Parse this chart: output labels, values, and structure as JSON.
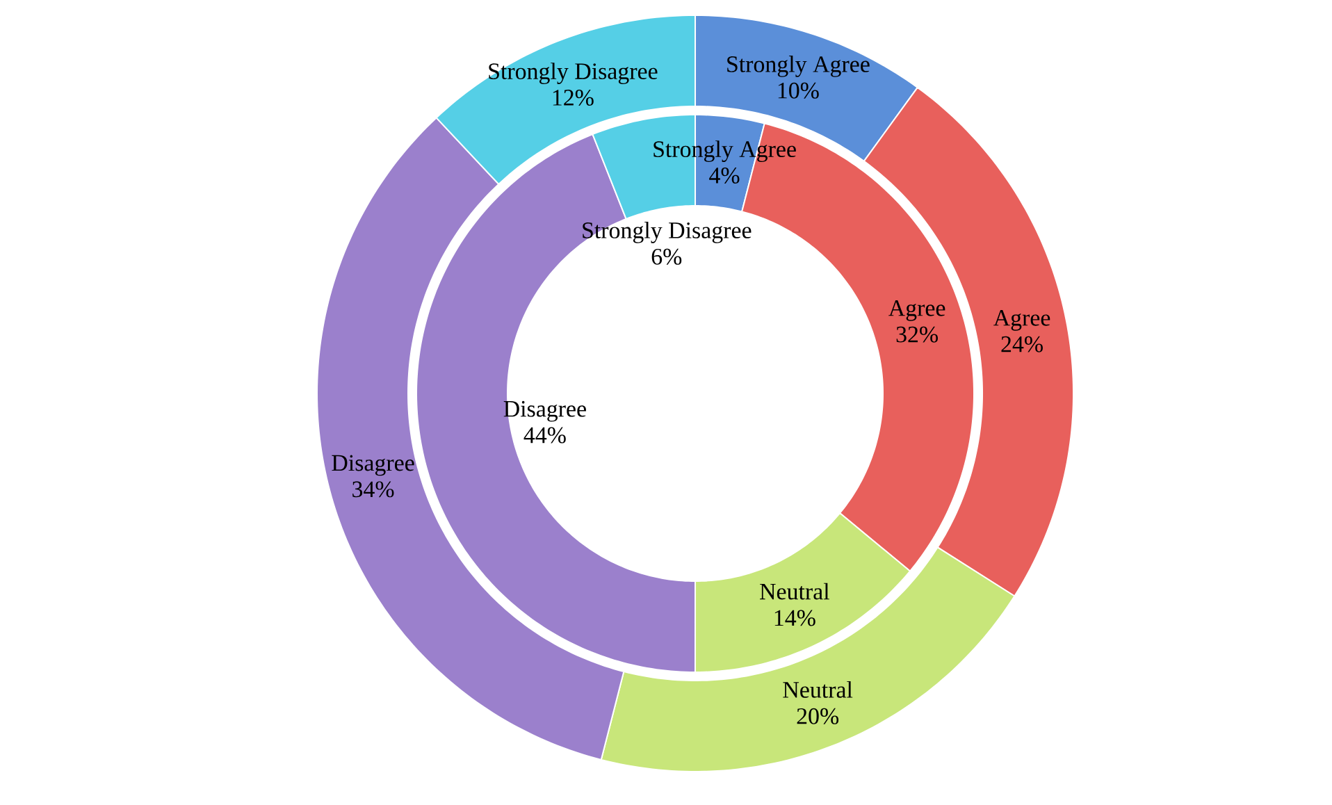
{
  "chart_data": {
    "type": "donut",
    "categories": [
      "Strongly Agree",
      "Agree",
      "Neutral",
      "Disagree",
      "Strongly Disagree"
    ],
    "colors": [
      "#5b8fd9",
      "#e8605c",
      "#c8e67a",
      "#9b80cc",
      "#55cfe6"
    ],
    "series": [
      {
        "values": [
          10,
          24,
          20,
          34,
          12
        ],
        "value_labels": [
          "10%",
          "24%",
          "20%",
          "34%",
          "12%"
        ]
      },
      {
        "values": [
          4,
          32,
          14,
          44,
          6
        ],
        "value_labels": [
          "4%",
          "32%",
          "14%",
          "44%",
          "6%"
        ]
      }
    ]
  }
}
